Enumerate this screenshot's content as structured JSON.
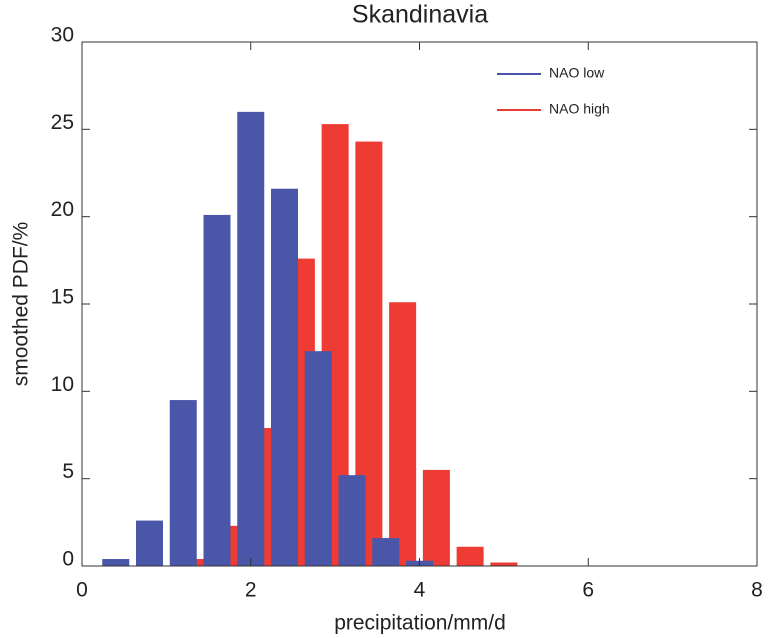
{
  "chart_data": {
    "type": "bar",
    "title": "Skandinavia",
    "x_label": "precipitation/mm/d",
    "y_label": "smoothed PDF/%",
    "xlim": [
      0,
      8
    ],
    "xticks": [
      0,
      2,
      4,
      6,
      8
    ],
    "ylim": [
      0,
      30
    ],
    "yticks": [
      0,
      5,
      10,
      15,
      20,
      25,
      30
    ],
    "legend": "upper right",
    "series": [
      {
        "name": "NAO high",
        "color": "#ee3b33",
        "x": [
          1.4,
          1.8,
          2.2,
          2.6,
          3.0,
          3.4,
          3.8,
          4.2,
          4.6,
          5.0
        ],
        "values": [
          0.4,
          2.3,
          7.9,
          17.6,
          25.3,
          24.3,
          15.1,
          5.5,
          1.1,
          0.2
        ]
      },
      {
        "name": "NAO low",
        "color": "#4a56a8",
        "x": [
          0.4,
          0.8,
          1.2,
          1.6,
          2.0,
          2.4,
          2.8,
          3.2,
          3.6,
          4.0
        ],
        "values": [
          0.4,
          2.6,
          9.5,
          20.1,
          26.0,
          21.6,
          12.3,
          5.2,
          1.6,
          0.3
        ]
      }
    ]
  }
}
